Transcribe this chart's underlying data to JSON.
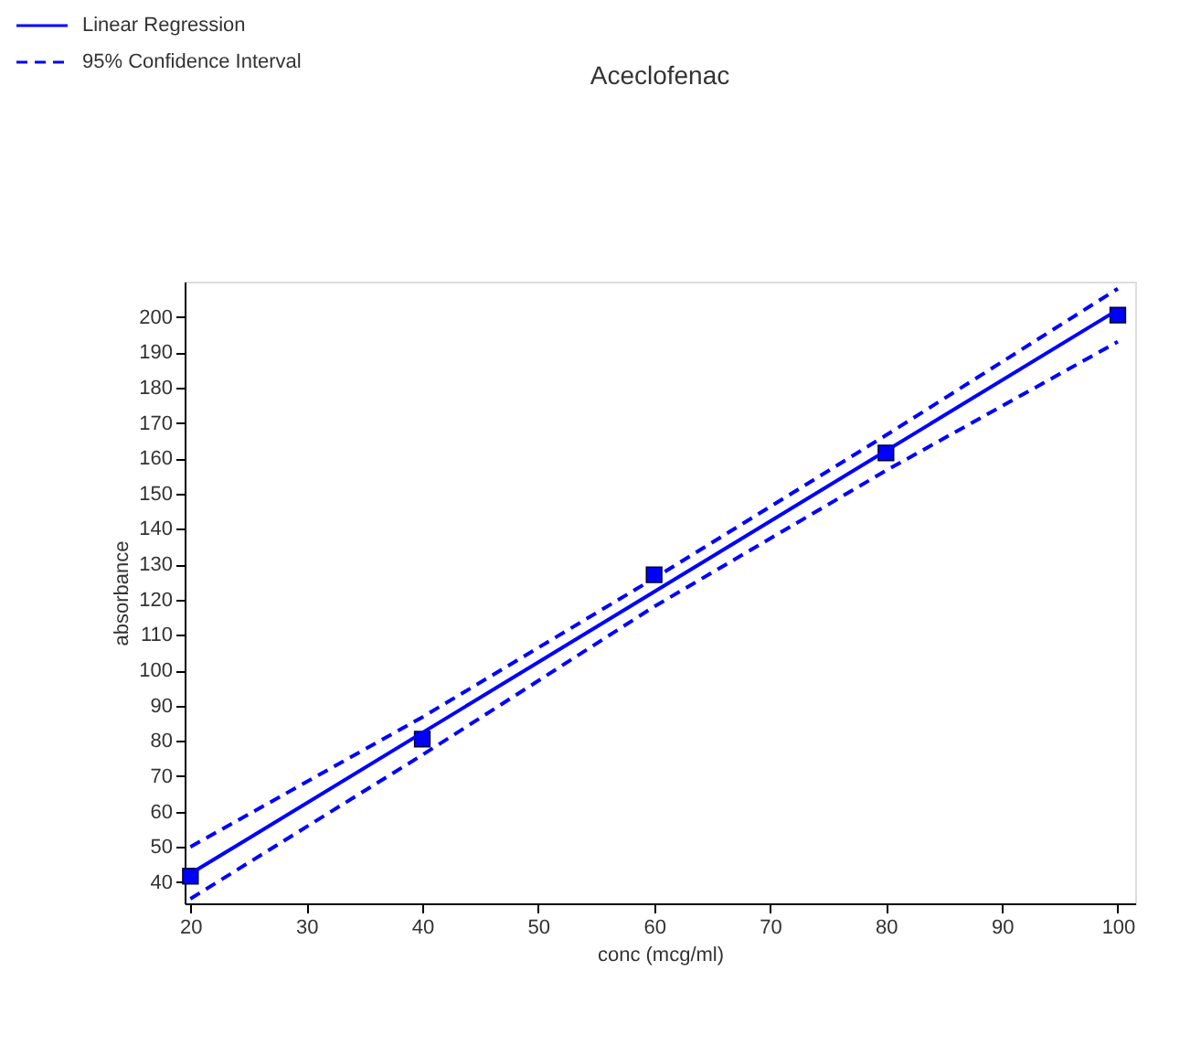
{
  "chart_data": {
    "type": "scatter",
    "title": "Aceclofenac",
    "xlabel": "conc (mcg/ml)",
    "ylabel": "absorbance",
    "xlim": [
      19.5,
      101.5
    ],
    "xticks": [
      20,
      30,
      40,
      50,
      60,
      70,
      80,
      90,
      100
    ],
    "ylim": [
      34,
      210
    ],
    "yticks": [
      40,
      50,
      60,
      70,
      80,
      90,
      100,
      110,
      120,
      130,
      140,
      150,
      160,
      170,
      180,
      190,
      200
    ],
    "grid": false,
    "legend": "top left",
    "series": [
      {
        "marker": "square",
        "color": "#0000ff",
        "x": [
          20,
          40,
          60,
          80,
          100
        ],
        "values": [
          41.7,
          80.5,
          127,
          161.5,
          200.5
        ]
      },
      {
        "type": "line",
        "name": "Linear Regression",
        "line_style": "solid",
        "color": "#0000ff",
        "x": [
          20,
          100
        ],
        "values": [
          42.4,
          202
        ]
      },
      {
        "type": "line",
        "name": "95% Confidence Interval",
        "line_style": "dashed",
        "color": "#0000ff",
        "x": [
          20,
          40,
          60,
          80,
          100
        ],
        "values": [
          50,
          86.7,
          126,
          166.5,
          208
        ]
      },
      {
        "type": "line",
        "line_style": "dashed",
        "color": "#0000ff",
        "x": [
          20,
          40,
          60,
          80,
          100
        ],
        "values": [
          35.3,
          76,
          118,
          156.5,
          193
        ]
      }
    ]
  }
}
